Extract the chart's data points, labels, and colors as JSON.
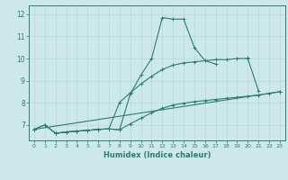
{
  "xlabel": "Humidex (Indice chaleur)",
  "xlim": [
    -0.5,
    23.5
  ],
  "ylim": [
    6.3,
    12.4
  ],
  "yticks": [
    7,
    8,
    9,
    10,
    11,
    12
  ],
  "xticks": [
    0,
    1,
    2,
    3,
    4,
    5,
    6,
    7,
    8,
    9,
    10,
    11,
    12,
    13,
    14,
    15,
    16,
    17,
    18,
    19,
    20,
    21,
    22,
    23
  ],
  "bg_color": "#cce8e8",
  "grid_color": "#b8d8d4",
  "line_color": "#2e7d6e",
  "lines": [
    {
      "x": [
        0,
        1,
        2,
        3,
        4,
        5,
        6,
        7,
        8,
        9,
        10,
        11,
        12,
        13,
        14,
        15,
        16,
        17,
        18,
        19,
        20,
        21,
        22,
        23
      ],
      "y": [
        6.8,
        7.0,
        6.62,
        6.68,
        6.72,
        6.75,
        6.8,
        6.82,
        6.78,
        8.4,
        9.25,
        10.0,
        11.85,
        11.78,
        11.78,
        10.5,
        9.9,
        9.75,
        null,
        null,
        10.05,
        null,
        null,
        null
      ]
    },
    {
      "x": [
        0,
        1,
        2,
        3,
        4,
        5,
        6,
        7,
        8,
        9,
        10,
        11,
        12,
        13,
        14,
        15,
        16,
        17,
        18,
        19,
        20,
        21
      ],
      "y": [
        6.8,
        7.0,
        6.62,
        6.68,
        6.72,
        6.75,
        6.8,
        6.82,
        8.02,
        8.45,
        8.85,
        9.2,
        9.5,
        9.7,
        9.8,
        9.85,
        9.9,
        9.95,
        9.95,
        10.0,
        10.0,
        8.55
      ]
    },
    {
      "x": [
        0,
        23
      ],
      "y": [
        6.8,
        8.5
      ]
    },
    {
      "x": [
        0,
        1,
        2,
        3,
        4,
        5,
        6,
        7,
        8,
        9,
        10,
        11,
        12,
        13,
        14,
        15,
        16,
        17,
        18,
        19,
        20,
        21,
        22,
        23
      ],
      "y": [
        6.8,
        null,
        6.62,
        6.68,
        6.72,
        6.75,
        6.8,
        6.82,
        6.78,
        7.05,
        7.3,
        7.55,
        7.75,
        7.9,
        7.98,
        8.05,
        8.1,
        8.15,
        8.2,
        8.25,
        8.3,
        8.35,
        8.42,
        8.5
      ]
    }
  ]
}
